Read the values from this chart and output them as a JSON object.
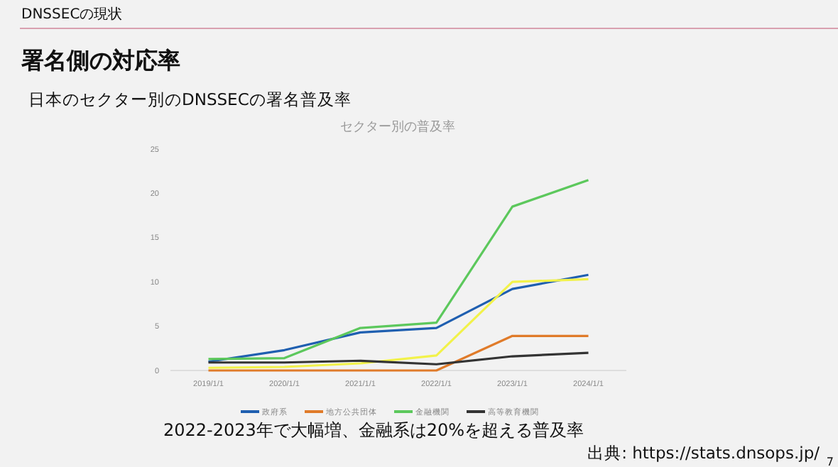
{
  "chart_data": {
    "type": "line",
    "title": "セクター別の普及率",
    "categories": [
      "2019/1/1",
      "2020/1/1",
      "2021/1/1",
      "2022/1/1",
      "2023/1/1",
      "2024/1/1"
    ],
    "series": [
      {
        "name": "政府系",
        "color": "#1f5fb0",
        "values": [
          1.0,
          2.3,
          4.3,
          4.8,
          9.2,
          10.8
        ]
      },
      {
        "name": "地方公共団体",
        "color": "#e07b2a",
        "values": [
          0,
          0,
          0,
          0,
          3.9,
          3.9
        ]
      },
      {
        "color": "#f2f24a",
        "values": [
          0.3,
          0.4,
          0.8,
          1.7,
          10.0,
          10.3
        ]
      },
      {
        "name": "金融機関",
        "color": "#5cc85c",
        "values": [
          1.3,
          1.4,
          4.8,
          5.4,
          18.5,
          21.5
        ]
      },
      {
        "name": "高等教育機関",
        "color": "#333333",
        "values": [
          0.9,
          0.9,
          1.1,
          0.7,
          1.6,
          2.0
        ]
      }
    ],
    "ylim": [
      0,
      25
    ],
    "yticks": [
      0,
      5,
      10,
      15,
      20,
      25
    ],
    "grid": false,
    "legend": "bottom",
    "marker": "none",
    "line_style": "solid",
    "annotations": [
      "DNSSECの現状",
      "署名側の対応率",
      "日本のセクター別のDNSSECの署名普及率",
      "2022-2023年で大幅増、金融系は20%を超える普及率",
      "出典: https://stats.dnsops.jp/",
      "7"
    ]
  }
}
